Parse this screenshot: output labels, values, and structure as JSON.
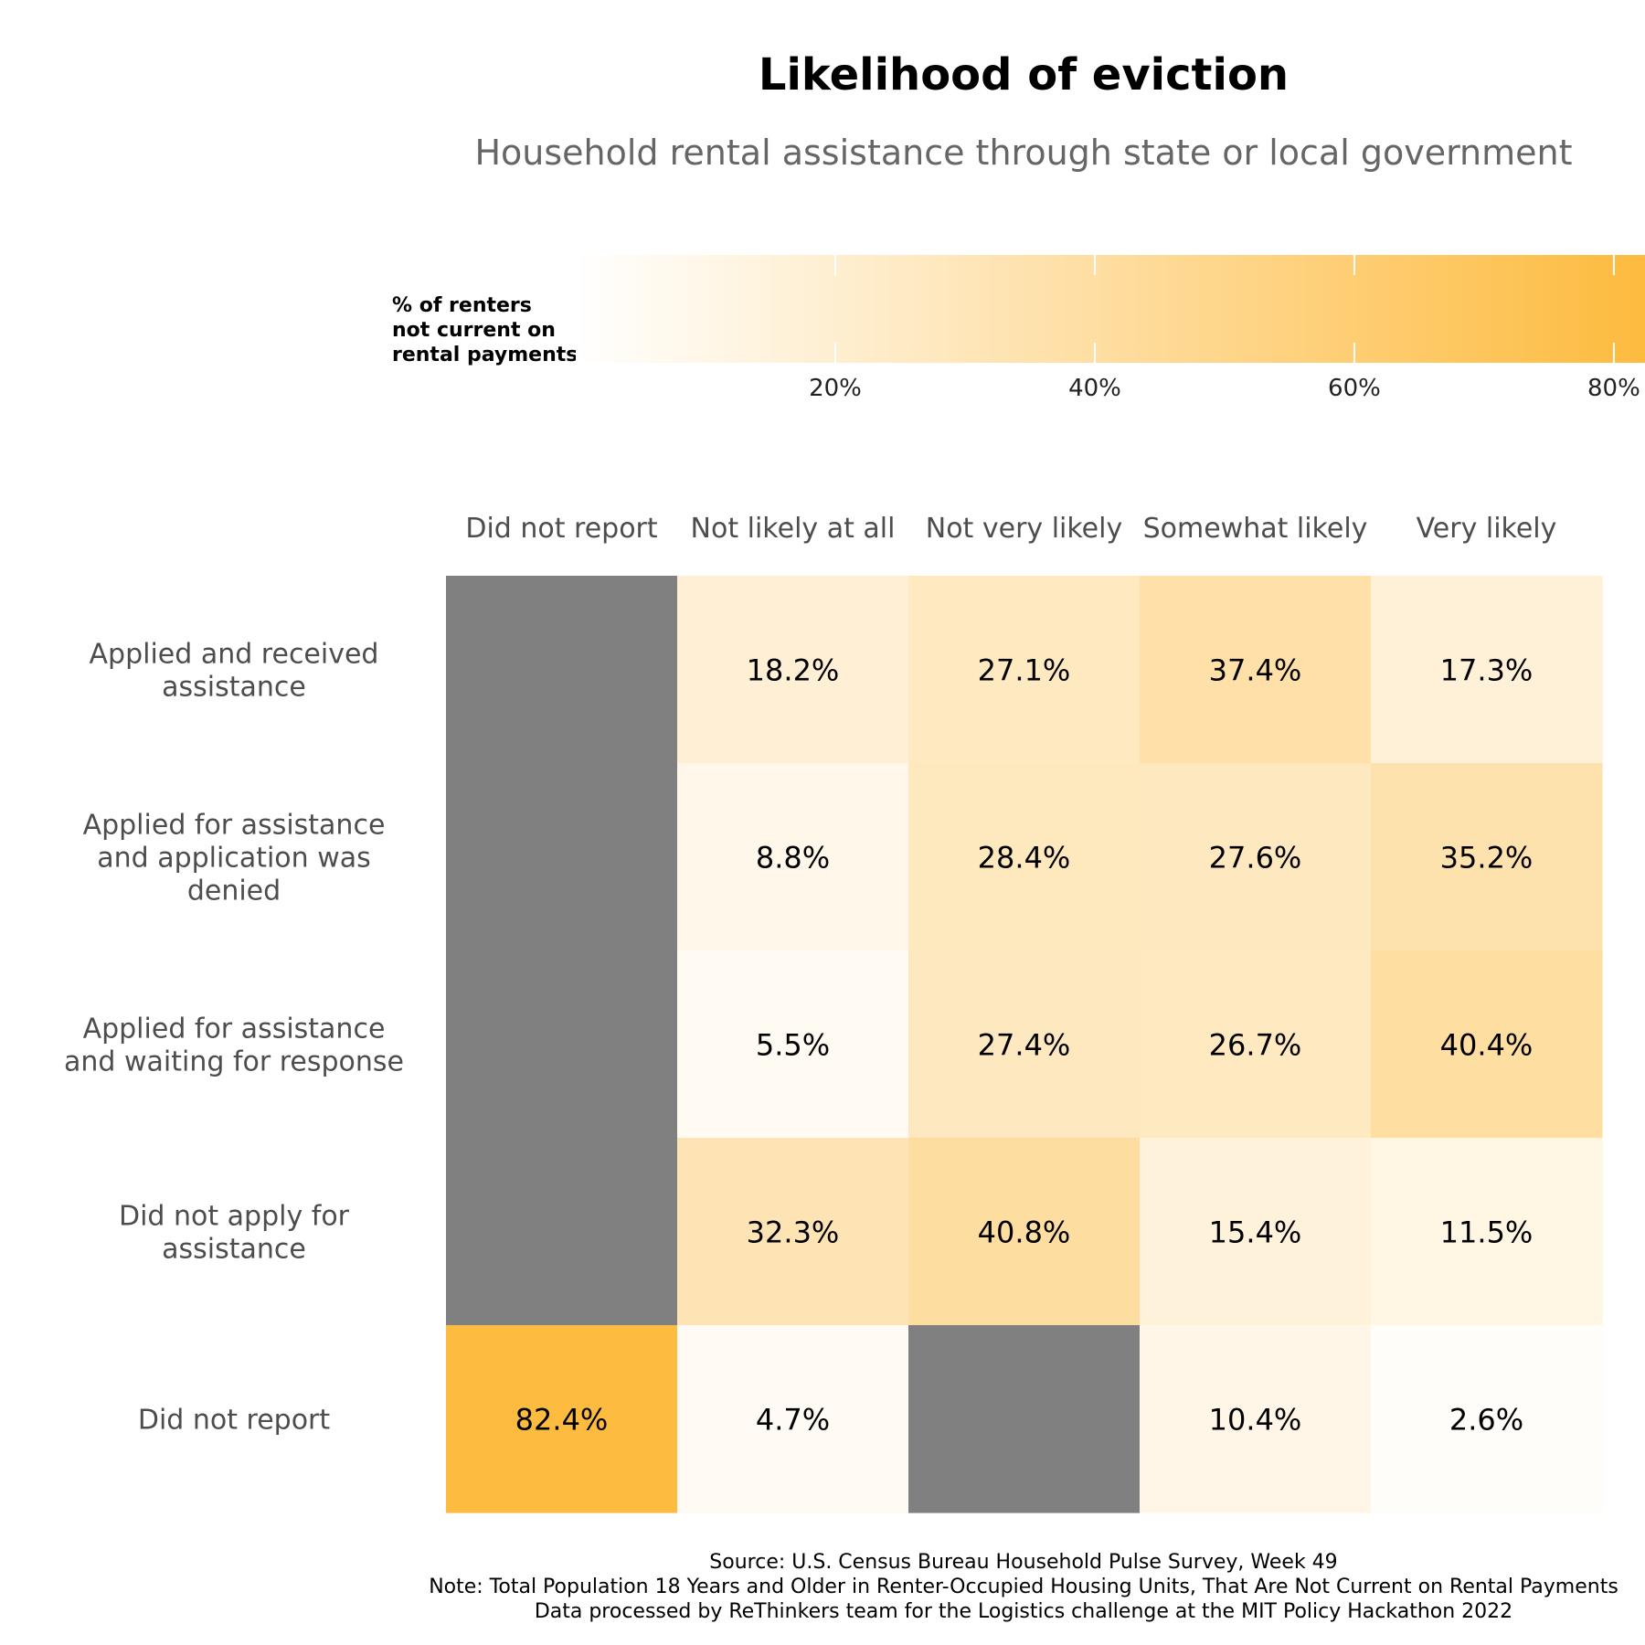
{
  "chart_data": {
    "type": "heatmap",
    "title": "Likelihood of eviction",
    "subtitle": "Household rental assistance through state or local government",
    "legend": {
      "title_lines": [
        "% of renters",
        "not current on",
        "rental payments"
      ],
      "ticks": [
        {
          "value": 20,
          "label": "20%"
        },
        {
          "value": 40,
          "label": "40%"
        },
        {
          "value": 60,
          "label": "60%"
        },
        {
          "value": 80,
          "label": "80%"
        }
      ],
      "range": [
        0,
        82.4
      ],
      "color_low": "#ffffff",
      "color_high": "#fdbb3f",
      "na_color": "#808080"
    },
    "columns": [
      "Did not report",
      "Not likely at all",
      "Not very likely",
      "Somewhat likely",
      "Very likely"
    ],
    "rows": [
      {
        "label_lines": [
          "Applied and received",
          "assistance"
        ],
        "values": [
          null,
          18.2,
          27.1,
          37.4,
          17.3
        ],
        "labels": [
          "",
          "18.2%",
          "27.1%",
          "37.4%",
          "17.3%"
        ]
      },
      {
        "label_lines": [
          "Applied for assistance",
          "and application was",
          "denied"
        ],
        "values": [
          null,
          8.8,
          28.4,
          27.6,
          35.2
        ],
        "labels": [
          "",
          "8.8%",
          "28.4%",
          "27.6%",
          "35.2%"
        ]
      },
      {
        "label_lines": [
          "Applied for assistance",
          "and waiting for response"
        ],
        "values": [
          null,
          5.5,
          27.4,
          26.7,
          40.4
        ],
        "labels": [
          "",
          "5.5%",
          "27.4%",
          "26.7%",
          "40.4%"
        ]
      },
      {
        "label_lines": [
          "Did not apply for",
          "assistance"
        ],
        "values": [
          null,
          32.3,
          40.8,
          15.4,
          11.5
        ],
        "labels": [
          "",
          "32.3%",
          "40.8%",
          "15.4%",
          "11.5%"
        ]
      },
      {
        "label_lines": [
          "Did not report"
        ],
        "values": [
          82.4,
          4.7,
          null,
          10.4,
          2.6
        ],
        "labels": [
          "82.4%",
          "4.7%",
          "",
          "10.4%",
          "2.6%"
        ]
      }
    ],
    "caption_lines": [
      "Source: U.S. Census Bureau Household Pulse Survey, Week 49",
      "Note: Total Population 18 Years and Older in Renter-Occupied Housing Units, That Are Not Current on Rental Payments",
      "Data processed by ReThinkers team for the Logistics challenge at the MIT Policy Hackathon 2022"
    ]
  }
}
